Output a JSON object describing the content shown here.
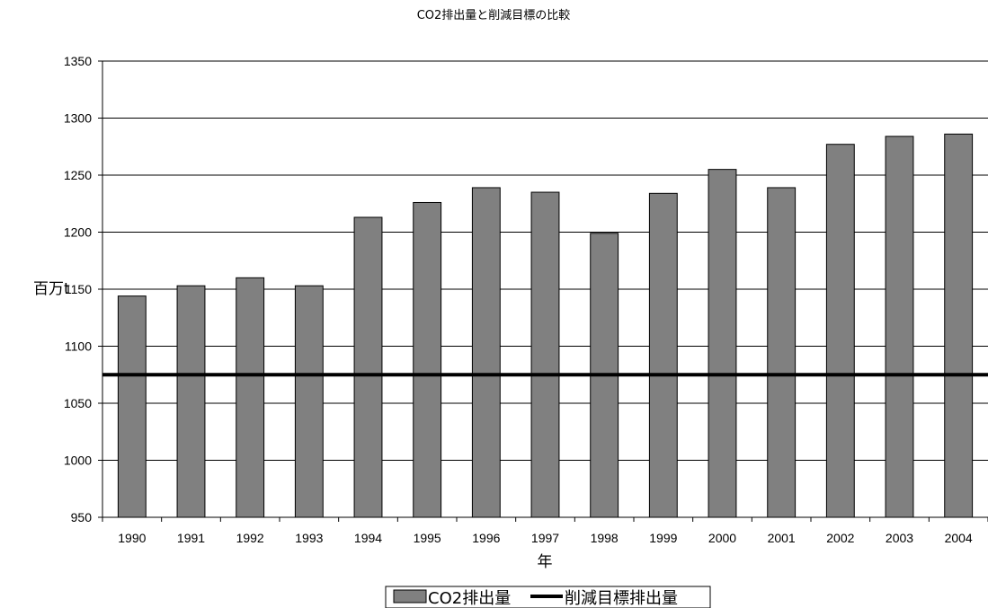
{
  "chart_data": {
    "type": "bar",
    "title": "CO2排出量と削減目標の比較",
    "xlabel": "年",
    "ylabel": "百万t",
    "categories": [
      "1990",
      "1991",
      "1992",
      "1993",
      "1994",
      "1995",
      "1996",
      "1997",
      "1998",
      "1999",
      "2000",
      "2001",
      "2002",
      "2003",
      "2004"
    ],
    "series": [
      {
        "name": "CO2排出量",
        "type": "bar",
        "color": "#808080",
        "values": [
          1144,
          1153,
          1160,
          1153,
          1213,
          1226,
          1239,
          1235,
          1199,
          1234,
          1255,
          1239,
          1277,
          1284,
          1286
        ]
      },
      {
        "name": "削減目標排出量",
        "type": "line",
        "color": "#000000",
        "values": [
          1075,
          1075,
          1075,
          1075,
          1075,
          1075,
          1075,
          1075,
          1075,
          1075,
          1075,
          1075,
          1075,
          1075,
          1075
        ]
      }
    ],
    "ylim": [
      950,
      1350
    ],
    "yticks": [
      950,
      1000,
      1050,
      1100,
      1150,
      1200,
      1250,
      1300,
      1350
    ],
    "grid": true,
    "legend_position": "bottom"
  }
}
